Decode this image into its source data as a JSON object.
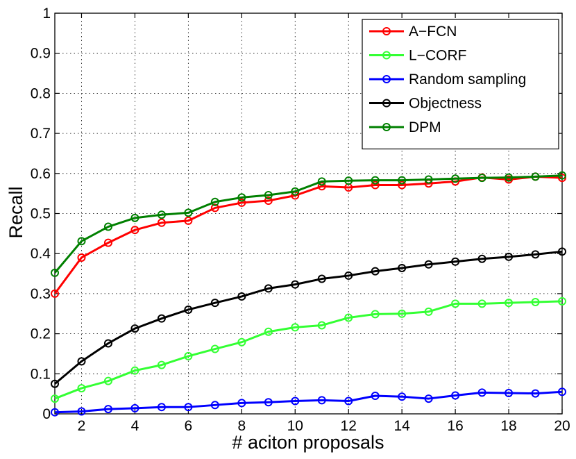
{
  "chart_data": {
    "type": "line",
    "xlabel": "# aciton proposals",
    "ylabel": "Recall",
    "xlim": [
      1,
      20
    ],
    "ylim": [
      0,
      1
    ],
    "x_ticks": [
      2,
      4,
      6,
      8,
      10,
      12,
      14,
      16,
      18,
      20
    ],
    "y_ticks": [
      0,
      0.1,
      0.2,
      0.3,
      0.4,
      0.5,
      0.6,
      0.7,
      0.8,
      0.9,
      1
    ],
    "x_tick_labels": [
      "2",
      "4",
      "6",
      "8",
      "10",
      "12",
      "14",
      "16",
      "18",
      "20"
    ],
    "y_tick_labels": [
      "0",
      "0.1",
      "0.2",
      "0.3",
      "0.4",
      "0.5",
      "0.6",
      "0.7",
      "0.8",
      "0.9",
      "1"
    ],
    "grid": true,
    "legend_position": "top-right",
    "x": [
      1,
      2,
      3,
      4,
      5,
      6,
      7,
      8,
      9,
      10,
      11,
      12,
      13,
      14,
      15,
      16,
      17,
      18,
      19,
      20
    ],
    "series": [
      {
        "name": "A−FCN",
        "color": "#ff0000",
        "values": [
          0.3,
          0.39,
          0.427,
          0.459,
          0.477,
          0.482,
          0.514,
          0.527,
          0.532,
          0.545,
          0.568,
          0.565,
          0.571,
          0.571,
          0.575,
          0.58,
          0.59,
          0.585,
          0.592,
          0.589
        ]
      },
      {
        "name": "L−CORF",
        "color": "#33ff33",
        "values": [
          0.038,
          0.064,
          0.082,
          0.108,
          0.122,
          0.144,
          0.162,
          0.179,
          0.205,
          0.216,
          0.221,
          0.24,
          0.249,
          0.25,
          0.255,
          0.275,
          0.275,
          0.277,
          0.279,
          0.281
        ]
      },
      {
        "name": "Random sampling",
        "color": "#0000ff",
        "values": [
          0.004,
          0.006,
          0.012,
          0.014,
          0.017,
          0.017,
          0.022,
          0.027,
          0.029,
          0.032,
          0.034,
          0.032,
          0.045,
          0.043,
          0.038,
          0.046,
          0.053,
          0.052,
          0.051,
          0.055
        ]
      },
      {
        "name": "Objectness",
        "color": "#000000",
        "values": [
          0.075,
          0.131,
          0.176,
          0.213,
          0.238,
          0.26,
          0.277,
          0.293,
          0.313,
          0.323,
          0.337,
          0.345,
          0.356,
          0.364,
          0.373,
          0.38,
          0.387,
          0.392,
          0.398,
          0.405
        ]
      },
      {
        "name": "DPM",
        "color": "#008000",
        "values": [
          0.352,
          0.431,
          0.467,
          0.489,
          0.497,
          0.502,
          0.529,
          0.54,
          0.546,
          0.555,
          0.58,
          0.582,
          0.583,
          0.583,
          0.585,
          0.587,
          0.589,
          0.59,
          0.592,
          0.595
        ]
      }
    ]
  }
}
